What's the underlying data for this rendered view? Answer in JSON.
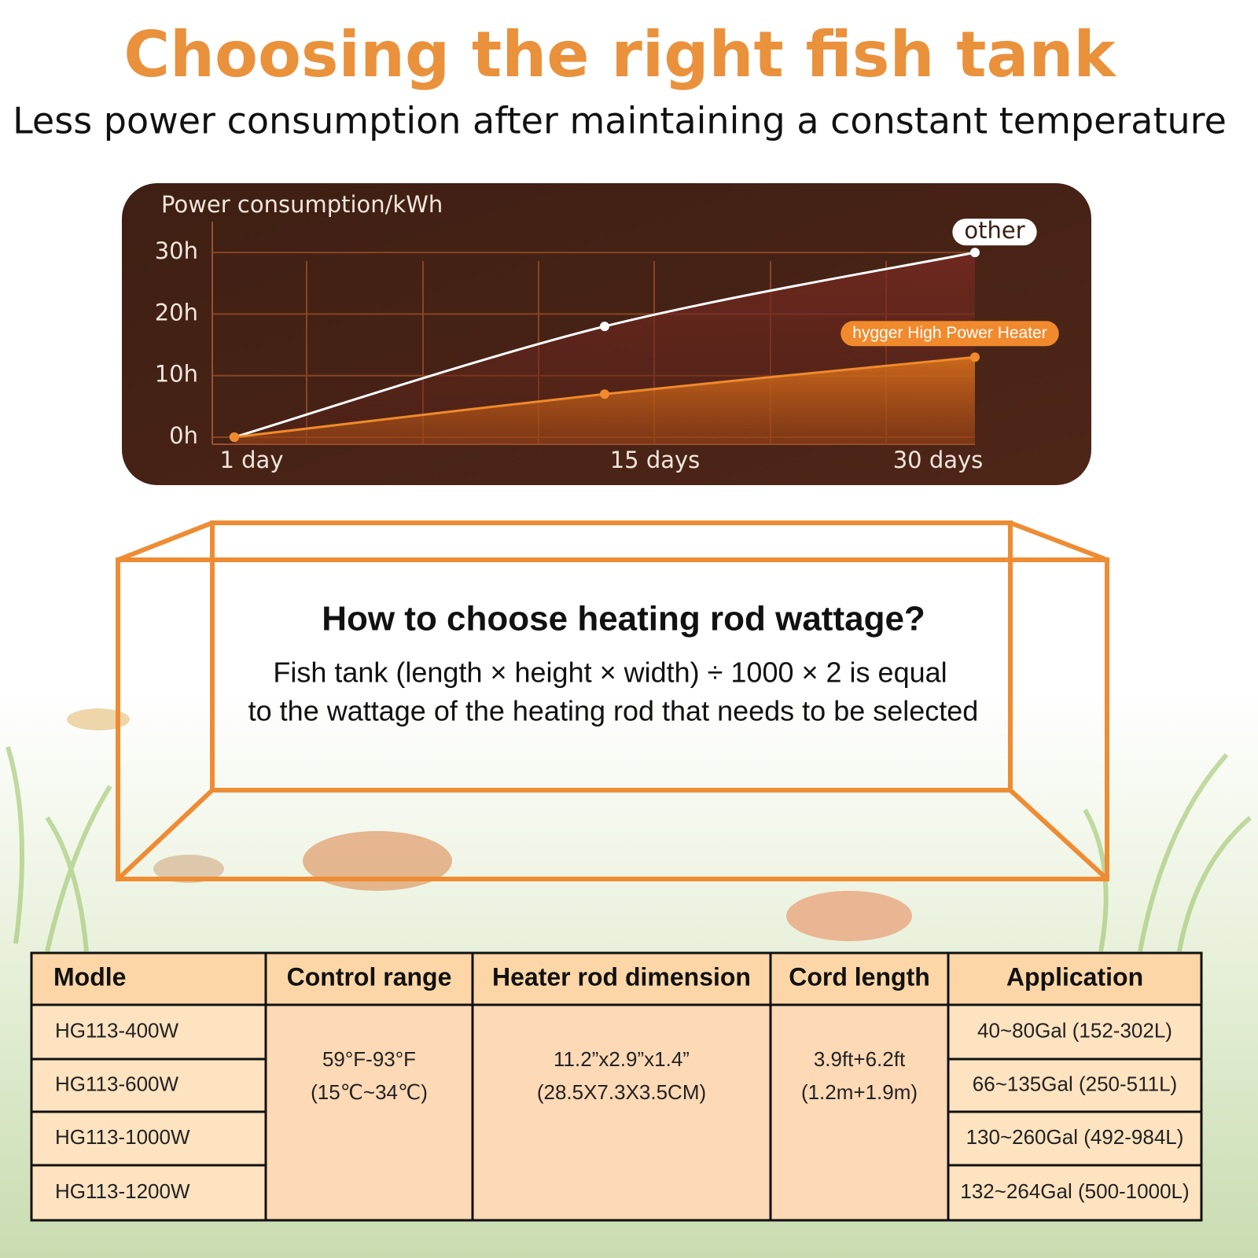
{
  "header": {
    "title": "Choosing the right fish tank",
    "subtitle": "Less power consumption after maintaining a constant temperature"
  },
  "chart_data": {
    "type": "line",
    "y_label": "Power consumption/kWh",
    "categories": [
      "1 day",
      "15 days",
      "30 days"
    ],
    "series": [
      {
        "name": "other",
        "color": "#ffffff",
        "values": [
          0,
          18,
          30
        ]
      },
      {
        "name": "hygger High Power Heater",
        "color": "#f08a2c",
        "values": [
          0,
          7,
          13
        ]
      }
    ],
    "ylim": [
      0,
      35
    ],
    "yticks": [
      {
        "value": 0,
        "label": "0h"
      },
      {
        "value": 10,
        "label": "10h"
      },
      {
        "value": 20,
        "label": "20h"
      },
      {
        "value": 30,
        "label": "30h"
      }
    ],
    "grid": true
  },
  "tank": {
    "title": "How to choose heating rod wattage?",
    "lines": [
      "Fish tank (length × height × width) ÷ 1000 × 2 is equal",
      "to the wattage of the heating rod that needs to be selected"
    ]
  },
  "table": {
    "columns": [
      "Modle",
      "Control range",
      "Heater rod dimension",
      "Cord length",
      "Application"
    ],
    "models": [
      "HG113-400W",
      "HG113-600W",
      "HG113-1000W",
      "HG113-1200W"
    ],
    "control_range": [
      "59°F-93°F",
      "(15℃~34℃)"
    ],
    "dimension": [
      "11.2”x2.9”x1.4”",
      "(28.5X7.3X3.5CM)"
    ],
    "cord_length": [
      "3.9ft+6.2ft",
      "(1.2m+1.9m)"
    ],
    "applications": [
      "40~80Gal (152-302L)",
      "66~135Gal (250-511L)",
      "130~260Gal (492-984L)",
      "132~264Gal (500-1000L)"
    ]
  }
}
